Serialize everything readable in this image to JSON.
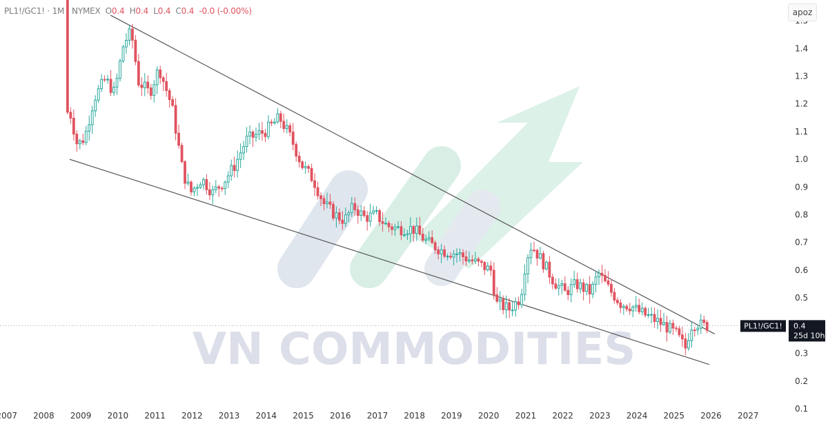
{
  "header": {
    "symbol": "PL1!/GC1!",
    "interval": "1M",
    "exchange": "NYMEX",
    "open_label": "O",
    "open": "0.4",
    "high_label": "H",
    "high": "0.4",
    "low_label": "L",
    "low": "0.4",
    "close_label": "C",
    "close": "0.4",
    "change": "-0.0 (-0.00%)"
  },
  "scale_button": "apoz",
  "watermark": "VN COMMODITIES",
  "price_tag": {
    "symbol": "PL1!/GC1!",
    "price": "0.4",
    "countdown": "25d 10h"
  },
  "colors": {
    "up": "#26a69a",
    "down": "#e0535f",
    "trend": "#555555",
    "watermark_text": "#dcdfe9",
    "arrow": "#d6efe4"
  },
  "chart_data": {
    "type": "candlestick",
    "series": [
      {
        "name": "PL1!/GC1!",
        "interval": "monthly",
        "anchors": [
          [
            2008.65,
            1.6
          ],
          [
            2008.75,
            1.17
          ],
          [
            2008.95,
            1.05
          ],
          [
            2009.15,
            1.08
          ],
          [
            2009.4,
            1.22
          ],
          [
            2009.7,
            1.29
          ],
          [
            2009.95,
            1.24
          ],
          [
            2010.2,
            1.42
          ],
          [
            2010.4,
            1.46
          ],
          [
            2010.6,
            1.28
          ],
          [
            2010.9,
            1.24
          ],
          [
            2011.15,
            1.33
          ],
          [
            2011.5,
            1.19
          ],
          [
            2011.8,
            0.95
          ],
          [
            2012.0,
            0.88
          ],
          [
            2012.3,
            0.93
          ],
          [
            2012.6,
            0.88
          ],
          [
            2012.9,
            0.92
          ],
          [
            2013.2,
            0.98
          ],
          [
            2013.5,
            1.07
          ],
          [
            2013.8,
            1.09
          ],
          [
            2014.0,
            1.1
          ],
          [
            2014.4,
            1.15
          ],
          [
            2014.7,
            1.08
          ],
          [
            2015.0,
            0.98
          ],
          [
            2015.3,
            0.93
          ],
          [
            2015.6,
            0.84
          ],
          [
            2015.9,
            0.8
          ],
          [
            2016.15,
            0.78
          ],
          [
            2016.4,
            0.83
          ],
          [
            2016.7,
            0.79
          ],
          [
            2017.0,
            0.8
          ],
          [
            2017.3,
            0.76
          ],
          [
            2017.6,
            0.75
          ],
          [
            2018.0,
            0.75
          ],
          [
            2018.4,
            0.7
          ],
          [
            2018.8,
            0.67
          ],
          [
            2019.2,
            0.66
          ],
          [
            2019.5,
            0.64
          ],
          [
            2019.8,
            0.62
          ],
          [
            2020.1,
            0.6
          ],
          [
            2020.25,
            0.48
          ],
          [
            2020.6,
            0.46
          ],
          [
            2020.9,
            0.5
          ],
          [
            2021.05,
            0.64
          ],
          [
            2021.2,
            0.69
          ],
          [
            2021.5,
            0.63
          ],
          [
            2021.8,
            0.56
          ],
          [
            2022.1,
            0.52
          ],
          [
            2022.4,
            0.55
          ],
          [
            2022.8,
            0.52
          ],
          [
            2023.0,
            0.59
          ],
          [
            2023.3,
            0.53
          ],
          [
            2023.6,
            0.48
          ],
          [
            2023.9,
            0.47
          ],
          [
            2024.1,
            0.45
          ],
          [
            2024.4,
            0.43
          ],
          [
            2024.8,
            0.4
          ],
          [
            2025.1,
            0.37
          ],
          [
            2025.35,
            0.32
          ],
          [
            2025.5,
            0.4
          ],
          [
            2025.65,
            0.41
          ],
          [
            2025.8,
            0.4
          ]
        ]
      }
    ],
    "trendlines": [
      {
        "from": [
          2009.8,
          1.52
        ],
        "to": [
          2026.1,
          0.37
        ]
      },
      {
        "from": [
          2008.7,
          1.0
        ],
        "to": [
          2025.95,
          0.26
        ]
      }
    ],
    "x_ticks": [
      "2007",
      "2008",
      "2009",
      "2010",
      "2011",
      "2012",
      "2013",
      "2014",
      "2015",
      "2016",
      "2017",
      "2018",
      "2019",
      "2020",
      "2021",
      "2022",
      "2023",
      "2024",
      "2025",
      "2026",
      "2027"
    ],
    "y_ticks": [
      "1.5",
      "1.4",
      "1.3",
      "1.2",
      "1.1",
      "1.0",
      "0.9",
      "0.8",
      "0.7",
      "0.6",
      "0.5",
      "0.3",
      "0.2",
      "0.1"
    ],
    "xlim": [
      2006.95,
      2028.0
    ],
    "ylim": [
      0.09,
      1.55
    ],
    "last_price": 0.4,
    "grid": false,
    "scale": "linear"
  }
}
